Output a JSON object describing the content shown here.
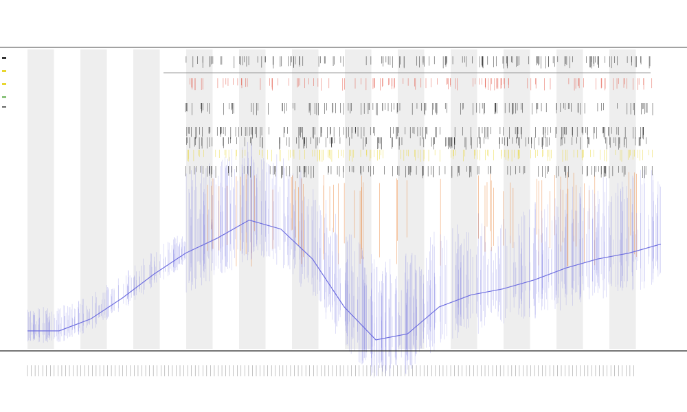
{
  "chart_data": {
    "type": "line",
    "title": "",
    "subtitle": [
      "",
      ""
    ],
    "xlabel": "",
    "ylabel": "",
    "grid": false,
    "legend_position": "top-left",
    "alternating_band_fill": "#eeeeee",
    "colors": {
      "main_series": "#6f6fe0",
      "event_black": "#111111",
      "event_red": "#e04a3a",
      "event_orange": "#e87a2a",
      "event_yellow": "#e8d630",
      "axis": "#222222"
    },
    "series": [
      {
        "name": "",
        "color": "#6f6fe0",
        "x": [
          0,
          5,
          10,
          15,
          20,
          25,
          30,
          35,
          40,
          45,
          50,
          55,
          60,
          65,
          70,
          75,
          80,
          85,
          90,
          95,
          100
        ],
        "y": [
          6,
          6,
          10,
          17,
          25,
          32,
          37,
          43,
          40,
          30,
          14,
          3,
          5,
          14,
          18,
          20,
          23,
          27,
          30,
          32,
          35
        ]
      }
    ],
    "event_rows": [
      "black",
      "red",
      "black",
      "black",
      "black",
      "yellow",
      "black"
    ],
    "x_tick_count": 160,
    "ylim": [
      0,
      100
    ],
    "xlim": [
      0,
      100
    ]
  }
}
